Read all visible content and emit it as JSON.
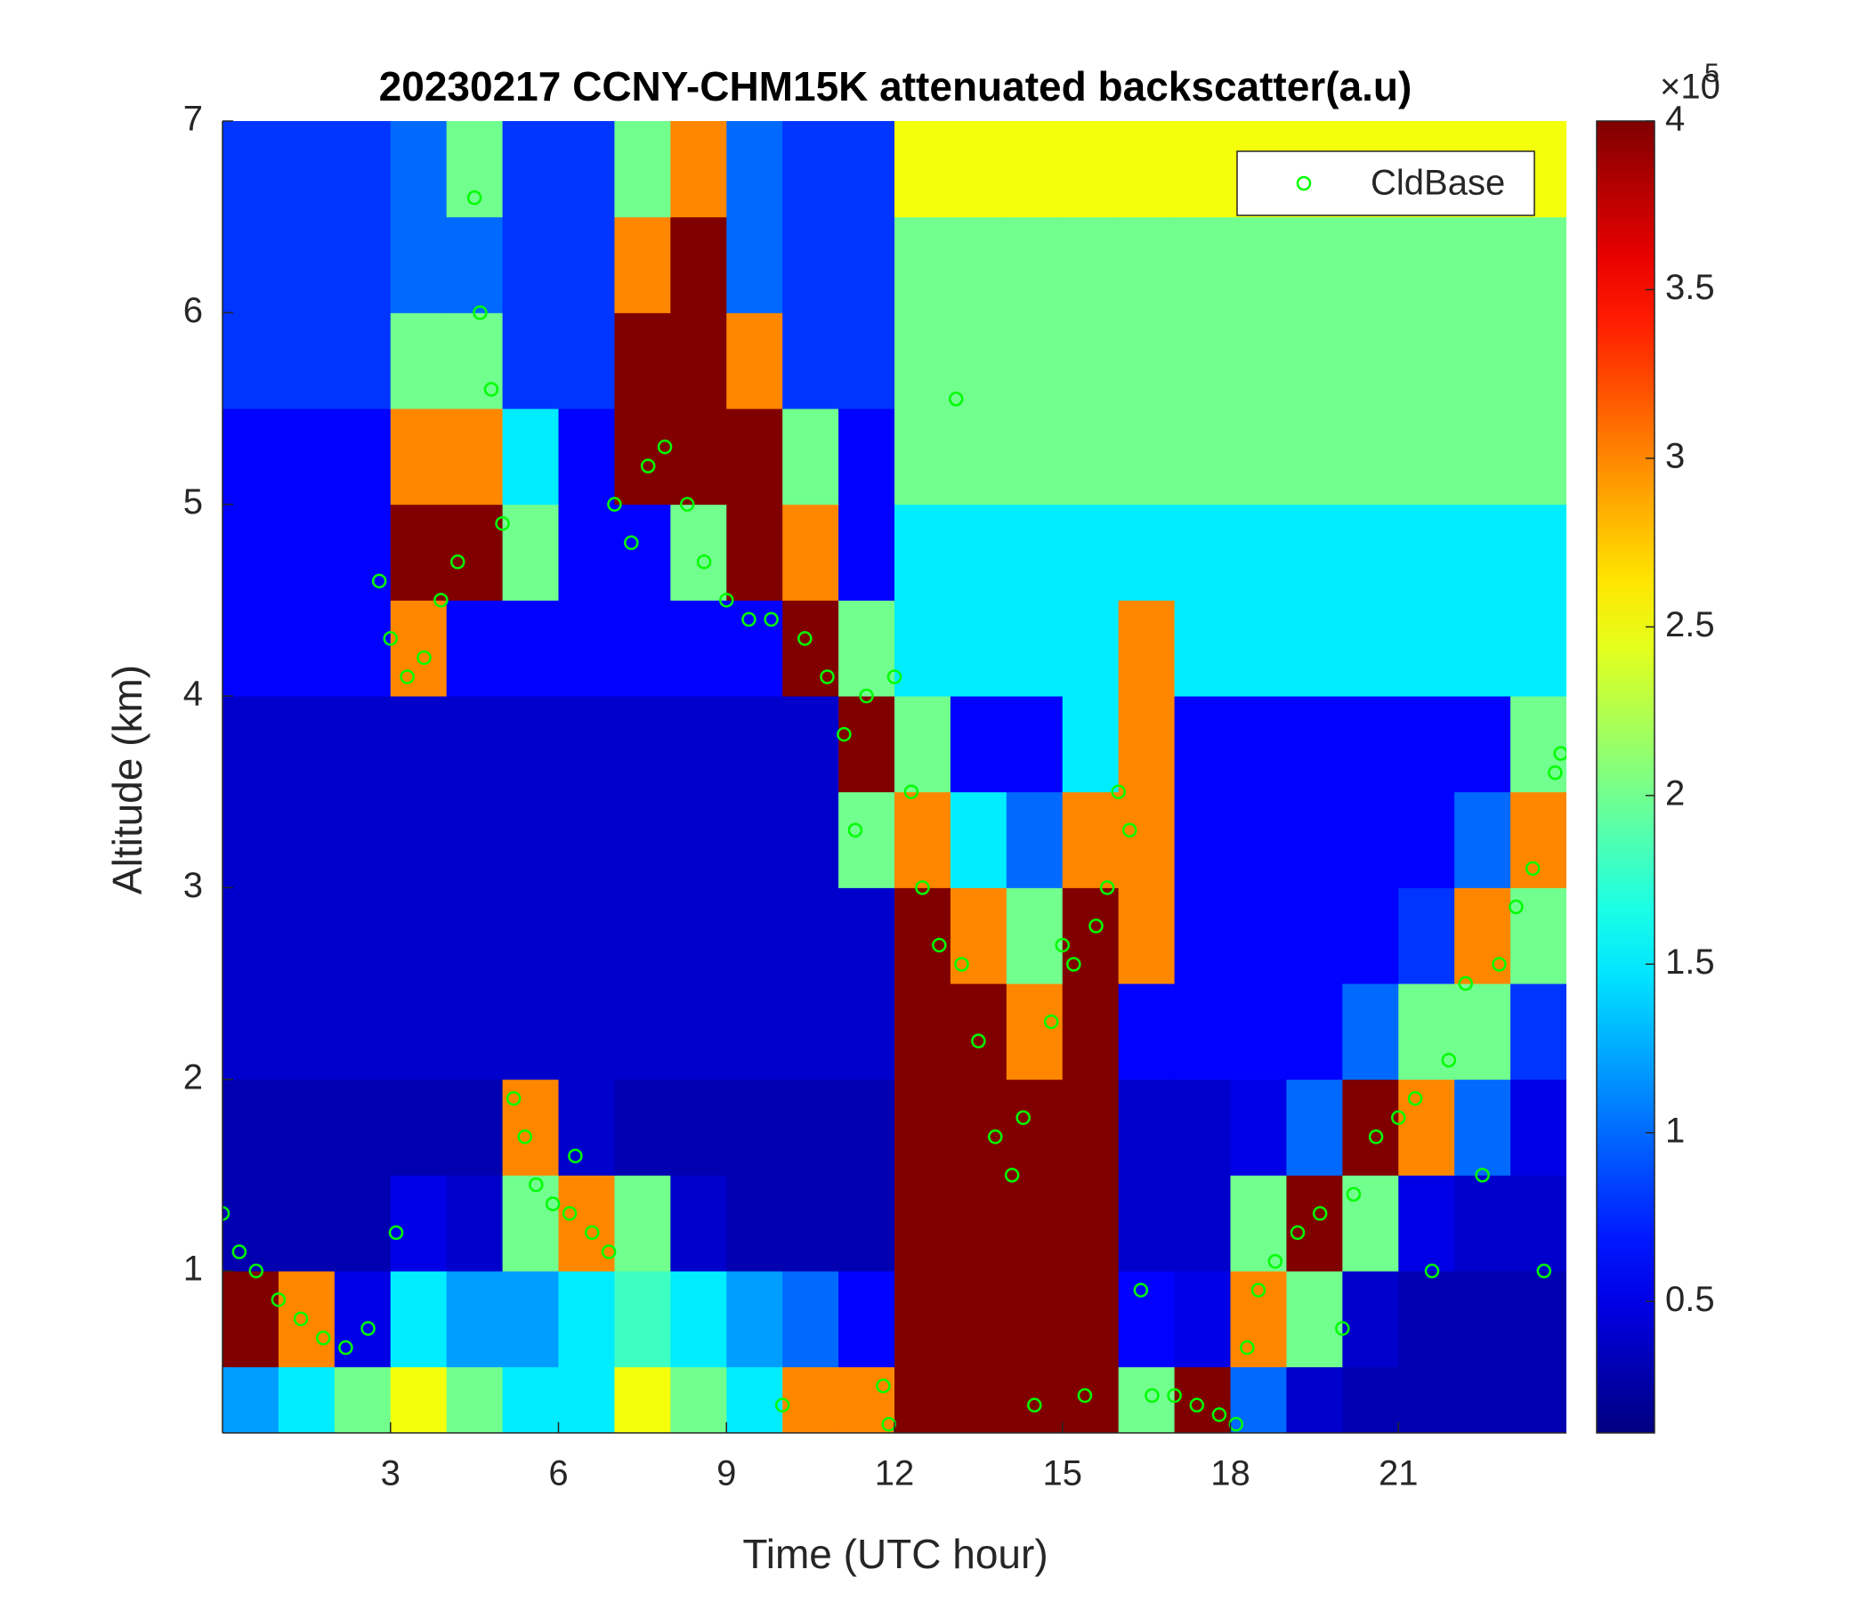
{
  "chart_data": {
    "type": "heatmap",
    "title": "20230217 CCNY-CHM15K attenuated backscatter(a.u)",
    "x_label": "Time (UTC hour)",
    "y_label": "Altitude (km)",
    "xlim": [
      0,
      24
    ],
    "xticks": [
      3,
      6,
      9,
      12,
      15,
      18,
      21
    ],
    "ylim": [
      0.155,
      7
    ],
    "yticks": [
      1,
      2,
      3,
      4,
      5,
      6,
      7
    ],
    "colormap": "jet",
    "clim": [
      0.11,
      4
    ],
    "colorbar_ticks": [
      0.5,
      1,
      1.5,
      2,
      2.5,
      3,
      3.5,
      4
    ],
    "colorbar_multiplier": "×10",
    "colorbar_exponent": "5",
    "xbins": [
      0,
      1,
      2,
      3,
      4,
      5,
      6,
      7,
      8,
      9,
      10,
      11,
      12,
      13,
      14,
      15,
      16,
      17,
      18,
      19,
      20,
      21,
      22,
      23,
      24
    ],
    "ybins": [
      0.155,
      0.5,
      1,
      1.5,
      2,
      2.5,
      3,
      3.5,
      4,
      4.5,
      5,
      5.5,
      6,
      6.5,
      7
    ],
    "z": [
      [
        1.2,
        1.5,
        2,
        2.5,
        2,
        1.5,
        1.5,
        2.5,
        2,
        1.5,
        3,
        3,
        4,
        4,
        4,
        4,
        2,
        4,
        1,
        0.4,
        0.3,
        0.3,
        0.3,
        0.3
      ],
      [
        4,
        3,
        0.5,
        1.5,
        1.2,
        1.2,
        1.5,
        1.8,
        1.5,
        1.2,
        1,
        0.6,
        4,
        4,
        4,
        4,
        0.6,
        0.5,
        3,
        2,
        0.4,
        0.3,
        0.3,
        0.3
      ],
      [
        0.3,
        0.3,
        0.3,
        0.5,
        0.4,
        2,
        3,
        2,
        0.4,
        0.3,
        0.3,
        0.3,
        4,
        4,
        4,
        4,
        0.4,
        0.4,
        2,
        4,
        2,
        0.5,
        0.4,
        0.4
      ],
      [
        0.3,
        0.3,
        0.3,
        0.3,
        0.3,
        3,
        0.4,
        0.3,
        0.3,
        0.3,
        0.3,
        0.3,
        4,
        4,
        4,
        4,
        0.4,
        0.4,
        0.5,
        1,
        4,
        3,
        1,
        0.5
      ],
      [
        0.4,
        0.4,
        0.4,
        0.4,
        0.4,
        0.4,
        0.4,
        0.4,
        0.4,
        0.4,
        0.4,
        0.4,
        4,
        4,
        3,
        4,
        0.6,
        0.6,
        0.6,
        0.6,
        1,
        2,
        2,
        0.8
      ],
      [
        0.4,
        0.4,
        0.4,
        0.4,
        0.4,
        0.4,
        0.4,
        0.4,
        0.4,
        0.4,
        0.4,
        0.4,
        4,
        3,
        2,
        4,
        3,
        0.6,
        0.6,
        0.6,
        0.6,
        0.8,
        3,
        2
      ],
      [
        0.4,
        0.4,
        0.4,
        0.4,
        0.4,
        0.4,
        0.4,
        0.4,
        0.4,
        0.4,
        0.4,
        2,
        3,
        1.5,
        1,
        3,
        3,
        0.6,
        0.6,
        0.6,
        0.6,
        0.6,
        1,
        3
      ],
      [
        0.4,
        0.4,
        0.4,
        0.4,
        0.4,
        0.4,
        0.4,
        0.4,
        0.4,
        0.4,
        0.4,
        4,
        2,
        0.6,
        0.6,
        1.5,
        3,
        0.6,
        0.6,
        0.6,
        0.6,
        0.6,
        0.6,
        2
      ],
      [
        0.6,
        0.6,
        0.6,
        3,
        0.6,
        0.6,
        0.6,
        0.6,
        0.6,
        0.6,
        4,
        2,
        1.5,
        1.5,
        1.5,
        1.5,
        3,
        1.5,
        1.5,
        1.5,
        1.5,
        1.5,
        1.5,
        1.5
      ],
      [
        0.6,
        0.6,
        0.6,
        4,
        4,
        2,
        0.6,
        0.6,
        2,
        4,
        3,
        0.6,
        1.5,
        1.5,
        1.5,
        1.5,
        1.5,
        1.5,
        1.5,
        1.5,
        1.5,
        1.5,
        1.5,
        1.5
      ],
      [
        0.6,
        0.6,
        0.6,
        3,
        3,
        1.5,
        0.6,
        4,
        4,
        4,
        2,
        0.6,
        2,
        2,
        2,
        2,
        2,
        2,
        2,
        2,
        2,
        2,
        2,
        2
      ],
      [
        0.8,
        0.8,
        0.8,
        2,
        2,
        0.8,
        0.8,
        4,
        4,
        3,
        0.8,
        0.8,
        2,
        2,
        2,
        2,
        2,
        2,
        2,
        2,
        2,
        2,
        2,
        2
      ],
      [
        0.8,
        0.8,
        0.8,
        1,
        1,
        0.8,
        0.8,
        3,
        4,
        1,
        0.8,
        0.8,
        2,
        2,
        2,
        2,
        2,
        2,
        2,
        2,
        2,
        2,
        2,
        2
      ],
      [
        0.8,
        0.8,
        0.8,
        1,
        2,
        0.8,
        0.8,
        2,
        3,
        1,
        0.8,
        0.8,
        2.5,
        2.5,
        2.5,
        2.5,
        2.5,
        2.5,
        2.5,
        2.5,
        2.5,
        2.5,
        2.5,
        2.5
      ]
    ],
    "legend": "upper right",
    "series": [
      {
        "name": "CldBase",
        "color": "#00ff00",
        "x": [
          0.0,
          0.3,
          0.6,
          1.0,
          1.4,
          1.8,
          2.2,
          2.6,
          2.8,
          3.0,
          3.1,
          3.3,
          3.6,
          3.9,
          4.2,
          4.5,
          4.6,
          4.8,
          5.0,
          5.2,
          5.4,
          5.6,
          5.9,
          6.2,
          6.3,
          6.6,
          6.9,
          7.0,
          7.3,
          7.6,
          7.9,
          8.3,
          8.6,
          9.0,
          9.4,
          9.8,
          10.0,
          10.4,
          10.8,
          11.1,
          11.3,
          11.5,
          11.8,
          11.9,
          12.0,
          12.3,
          12.5,
          12.8,
          13.1,
          13.2,
          13.5,
          13.8,
          14.1,
          14.3,
          14.5,
          14.8,
          15.0,
          15.2,
          15.4,
          15.6,
          15.8,
          16.0,
          16.2,
          16.4,
          16.6,
          17.0,
          17.4,
          17.8,
          18.1,
          18.3,
          18.5,
          18.8,
          19.2,
          19.6,
          20.0,
          20.2,
          20.6,
          21.0,
          21.3,
          21.6,
          21.9,
          22.2,
          22.5,
          22.8,
          23.1,
          23.4,
          23.6,
          23.8,
          23.9
        ],
        "y": [
          1.3,
          1.1,
          1.0,
          0.85,
          0.75,
          0.65,
          0.6,
          0.7,
          4.6,
          4.3,
          1.2,
          4.1,
          4.2,
          4.5,
          4.7,
          6.6,
          6.0,
          5.6,
          4.9,
          1.9,
          1.7,
          1.45,
          1.35,
          1.3,
          1.6,
          1.2,
          1.1,
          5.0,
          4.8,
          5.2,
          5.3,
          5.0,
          4.7,
          4.5,
          4.4,
          4.4,
          0.3,
          4.3,
          4.1,
          3.8,
          3.3,
          4.0,
          0.4,
          0.2,
          4.1,
          3.5,
          3.0,
          2.7,
          5.55,
          2.6,
          2.2,
          1.7,
          1.5,
          1.8,
          0.3,
          2.3,
          2.7,
          2.6,
          0.35,
          2.8,
          3.0,
          3.5,
          3.3,
          0.9,
          0.35,
          0.35,
          0.3,
          0.25,
          0.2,
          0.6,
          0.9,
          1.05,
          1.2,
          1.3,
          0.7,
          1.4,
          1.7,
          1.8,
          1.9,
          1.0,
          2.1,
          2.5,
          1.5,
          2.6,
          2.9,
          3.1,
          1.0,
          3.6,
          3.7
        ]
      }
    ]
  }
}
